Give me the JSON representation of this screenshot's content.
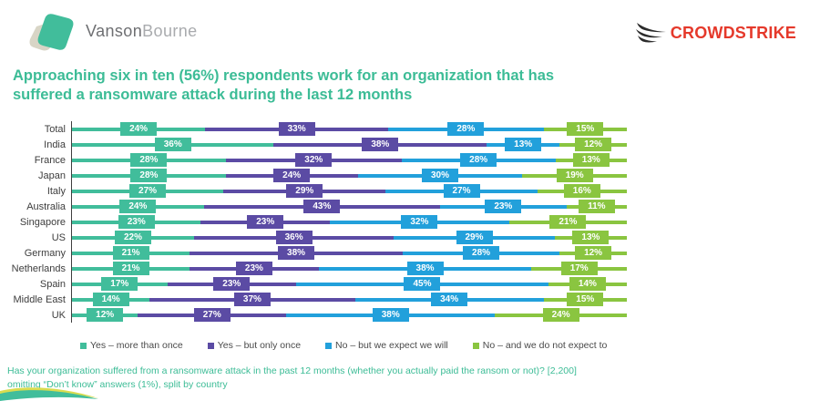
{
  "header": {
    "vanson_logo": {
      "text_primary": "Vanson",
      "text_secondary": "Bourne"
    },
    "crowdstrike_logo": {
      "text": "CROWDSTRIKE"
    }
  },
  "title": {
    "line1": "Approaching six in ten (56%) respondents work for an organization that has",
    "line2": "suffered a ransomware attack during the last 12 months"
  },
  "chart_data": {
    "type": "bar",
    "orientation": "horizontal",
    "stacked": true,
    "normalized_to_100_percent": true,
    "grid": false,
    "legend_position": "bottom",
    "value_suffix": "%",
    "categories": [
      "Total",
      "India",
      "France",
      "Japan",
      "Italy",
      "Australia",
      "Singapore",
      "US",
      "Germany",
      "Netherlands",
      "Spain",
      "Middle East",
      "UK"
    ],
    "series": [
      {
        "name": "Yes – more than once",
        "color": "#41BD9B",
        "values": [
          24,
          36,
          28,
          28,
          27,
          24,
          23,
          22,
          21,
          21,
          17,
          14,
          12
        ]
      },
      {
        "name": "Yes – but only once",
        "color": "#5B4BA4",
        "values": [
          33,
          38,
          32,
          24,
          29,
          43,
          23,
          36,
          38,
          23,
          23,
          37,
          27
        ]
      },
      {
        "name": "No – but we expect we will",
        "color": "#22A0DB",
        "values": [
          28,
          13,
          28,
          30,
          27,
          23,
          32,
          29,
          28,
          38,
          45,
          34,
          38
        ]
      },
      {
        "name": "No – and we do not expect to",
        "color": "#8AC540",
        "values": [
          15,
          12,
          13,
          19,
          16,
          11,
          21,
          13,
          12,
          17,
          14,
          15,
          24
        ]
      }
    ]
  },
  "footer": {
    "line1": "Has your organization suffered from a ransomware attack in the past 12 months (whether you actually paid the ransom or not)? [2,200]",
    "line2": "omitting “Don’t know” answers (1%), split by country"
  },
  "colors": {
    "title_teal": "#3CBC96",
    "crowdstrike_red": "#E5392B",
    "axis": "#3F3F3F",
    "category_label": "#3D3D3D",
    "legend_text": "#4A4A4A",
    "logo_teal": "#41BD9B",
    "logo_gray": "#D8D5C6",
    "swoosh_yellow": "#D9DC4F"
  }
}
